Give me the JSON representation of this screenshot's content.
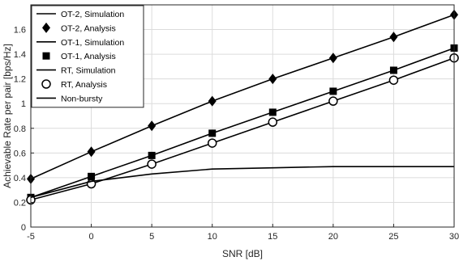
{
  "chart_data": {
    "type": "line",
    "xlabel": "SNR [dB]",
    "ylabel": "Achievable Rate per pair [bps/Hz]",
    "xlim": [
      -5,
      30
    ],
    "ylim": [
      0,
      1.8
    ],
    "xticks": [
      -5,
      0,
      5,
      10,
      15,
      20,
      25,
      30
    ],
    "yticks": [
      0,
      0.2,
      0.4,
      0.6,
      0.8,
      1,
      1.2,
      1.4,
      1.6
    ],
    "grid": true,
    "legend_position": "top-left",
    "x": [
      -5,
      0,
      5,
      10,
      15,
      20,
      25,
      30
    ],
    "series": [
      {
        "name": "OT-2, Simulation",
        "style": "line",
        "values": [
          0.39,
          0.61,
          0.82,
          1.02,
          1.2,
          1.37,
          1.54,
          1.72
        ]
      },
      {
        "name": "OT-2, Analysis",
        "style": "diamond",
        "values": [
          0.39,
          0.61,
          0.82,
          1.02,
          1.2,
          1.37,
          1.54,
          1.72
        ]
      },
      {
        "name": "OT-1, Simulation",
        "style": "line",
        "values": [
          0.24,
          0.41,
          0.58,
          0.76,
          0.93,
          1.1,
          1.27,
          1.45
        ]
      },
      {
        "name": "OT-1, Analysis",
        "style": "square",
        "values": [
          0.24,
          0.41,
          0.58,
          0.76,
          0.93,
          1.1,
          1.27,
          1.45
        ]
      },
      {
        "name": "RT, Simulation",
        "style": "line",
        "values": [
          0.22,
          0.35,
          0.51,
          0.68,
          0.85,
          1.02,
          1.19,
          1.37
        ]
      },
      {
        "name": "RT, Analysis",
        "style": "circle",
        "values": [
          0.22,
          0.35,
          0.51,
          0.68,
          0.85,
          1.02,
          1.19,
          1.37
        ]
      },
      {
        "name": "Non-bursty",
        "style": "line",
        "values": [
          0.24,
          0.37,
          0.43,
          0.47,
          0.48,
          0.49,
          0.49,
          0.49
        ]
      }
    ]
  }
}
